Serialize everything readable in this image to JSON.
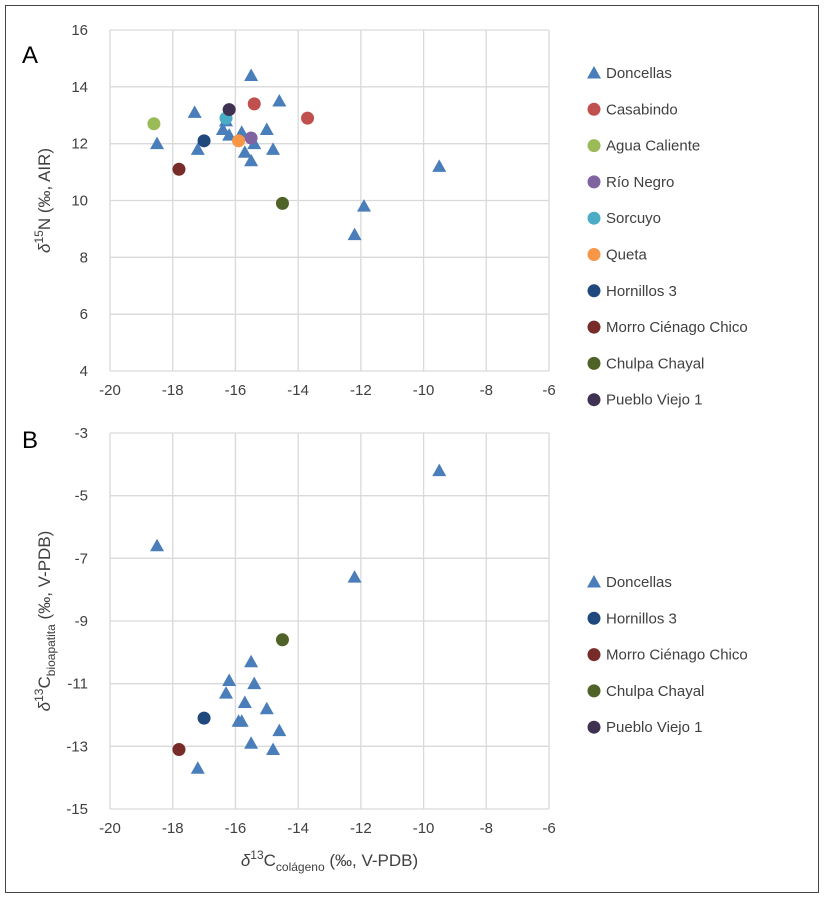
{
  "chart_data": [
    {
      "type": "scatter",
      "panel_label": "A",
      "ylabel_parts": [
        "δ",
        "15",
        "N  (‰, AIR)"
      ],
      "xlim": [
        -20,
        -6
      ],
      "xticks": [
        -20,
        -18,
        -16,
        -14,
        -12,
        -10,
        -8,
        -6
      ],
      "ylim": [
        4,
        16
      ],
      "yticks": [
        4,
        6,
        8,
        10,
        12,
        14,
        16
      ],
      "grid": true,
      "legend": "right",
      "series": [
        {
          "name": "Doncellas",
          "marker": "triangle",
          "color": "#4A7EBB",
          "points": [
            [
              -18.5,
              12.0
            ],
            [
              -17.3,
              13.1
            ],
            [
              -17.2,
              11.8
            ],
            [
              -16.4,
              12.5
            ],
            [
              -16.3,
              12.8
            ],
            [
              -16.2,
              12.3
            ],
            [
              -15.8,
              12.4
            ],
            [
              -15.7,
              11.7
            ],
            [
              -15.4,
              12.0
            ],
            [
              -15.5,
              11.4
            ],
            [
              -15.5,
              14.4
            ],
            [
              -15.0,
              12.5
            ],
            [
              -14.8,
              11.8
            ],
            [
              -14.6,
              13.5
            ],
            [
              -12.2,
              8.8
            ],
            [
              -11.9,
              9.8
            ],
            [
              -9.5,
              11.2
            ]
          ]
        },
        {
          "name": "Casabindo",
          "marker": "circle",
          "color": "#C0504D",
          "points": [
            [
              -15.4,
              13.4
            ],
            [
              -13.7,
              12.9
            ]
          ]
        },
        {
          "name": "Agua Caliente",
          "marker": "circle",
          "color": "#9BBB59",
          "points": [
            [
              -18.6,
              12.7
            ]
          ]
        },
        {
          "name": "Río Negro",
          "marker": "circle",
          "color": "#8064A2",
          "points": [
            [
              -15.5,
              12.2
            ]
          ]
        },
        {
          "name": "Sorcuyo",
          "marker": "circle",
          "color": "#4BACC6",
          "points": [
            [
              -16.3,
              12.9
            ]
          ]
        },
        {
          "name": "Queta",
          "marker": "circle",
          "color": "#F79646",
          "points": [
            [
              -15.9,
              12.1
            ]
          ]
        },
        {
          "name": "Hornillos 3",
          "marker": "circle",
          "color": "#1F497D",
          "points": [
            [
              -17.0,
              12.1
            ]
          ]
        },
        {
          "name": "Morro Ciénago Chico",
          "marker": "circle",
          "color": "#772C2A",
          "points": [
            [
              -17.8,
              11.1
            ]
          ]
        },
        {
          "name": "Chulpa Chayal",
          "marker": "circle",
          "color": "#4F6228",
          "points": [
            [
              -14.5,
              9.9
            ]
          ]
        },
        {
          "name": "Pueblo Viejo 1",
          "marker": "circle",
          "color": "#3F3151",
          "points": [
            [
              -16.2,
              13.2
            ]
          ]
        }
      ]
    },
    {
      "type": "scatter",
      "panel_label": "B",
      "ylabel_parts": [
        "δ",
        "13",
        "C",
        "bioapatita",
        "  (‰, V-PDB)"
      ],
      "xlabel_parts": [
        "δ",
        "13",
        "C",
        "colágeno",
        " (‰, V-PDB)"
      ],
      "xlim": [
        -20,
        -6
      ],
      "xticks": [
        -20,
        -18,
        -16,
        -14,
        -12,
        -10,
        -8,
        -6
      ],
      "ylim": [
        -15,
        -3
      ],
      "yticks": [
        -15,
        -13,
        -11,
        -9,
        -7,
        -5,
        -3
      ],
      "grid": true,
      "legend": "right",
      "series": [
        {
          "name": "Doncellas",
          "marker": "triangle",
          "color": "#4A7EBB",
          "points": [
            [
              -18.5,
              -6.6
            ],
            [
              -12.2,
              -7.6
            ],
            [
              -9.5,
              -4.2
            ],
            [
              -15.5,
              -10.3
            ],
            [
              -16.2,
              -10.9
            ],
            [
              -15.4,
              -11.0
            ],
            [
              -16.3,
              -11.3
            ],
            [
              -15.7,
              -11.6
            ],
            [
              -15.0,
              -11.8
            ],
            [
              -15.9,
              -12.2
            ],
            [
              -15.8,
              -12.2
            ],
            [
              -14.6,
              -12.5
            ],
            [
              -15.5,
              -12.9
            ],
            [
              -14.8,
              -13.1
            ],
            [
              -17.2,
              -13.7
            ]
          ]
        },
        {
          "name": "Hornillos 3",
          "marker": "circle",
          "color": "#1F497D",
          "points": [
            [
              -17.0,
              -12.1
            ]
          ]
        },
        {
          "name": "Morro Ciénago Chico",
          "marker": "circle",
          "color": "#772C2A",
          "points": [
            [
              -17.8,
              -13.1
            ]
          ]
        },
        {
          "name": "Chulpa Chayal",
          "marker": "circle",
          "color": "#4F6228",
          "points": [
            [
              -14.5,
              -9.6
            ]
          ]
        },
        {
          "name": "Pueblo Viejo 1",
          "marker": "circle",
          "color": "#3F3151",
          "points": []
        }
      ]
    }
  ]
}
